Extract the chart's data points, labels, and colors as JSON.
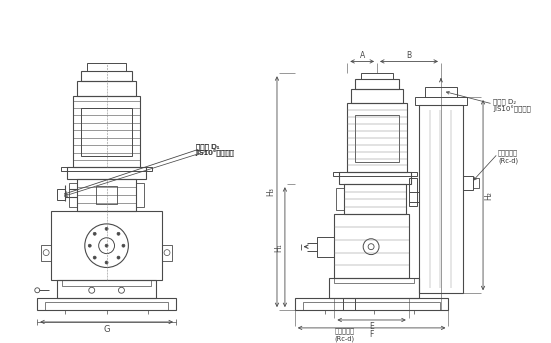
{
  "bg_color": "#ffffff",
  "line_color": "#4a4a4a",
  "dim_color": "#4a4a4a",
  "text_color": "#333333",
  "fig_width": 5.51,
  "fig_height": 3.43,
  "annotations": {
    "left_label_top": "吸気口 D₁",
    "left_label_bot": "JIS10°フランジ",
    "right_label_top": "吐出口 D₂",
    "right_label_bot": "JIS10°フランジ",
    "cooling_out": "冷却水出口\n(Rc-d)",
    "cooling_in": "冷却水入口\n(Rc-d)",
    "dim_G": "G",
    "dim_A": "A",
    "dim_B": "B",
    "dim_E": "E",
    "dim_F": "F",
    "dim_H1": "H₁",
    "dim_H2": "H₂",
    "dim_H3": "H₃"
  }
}
